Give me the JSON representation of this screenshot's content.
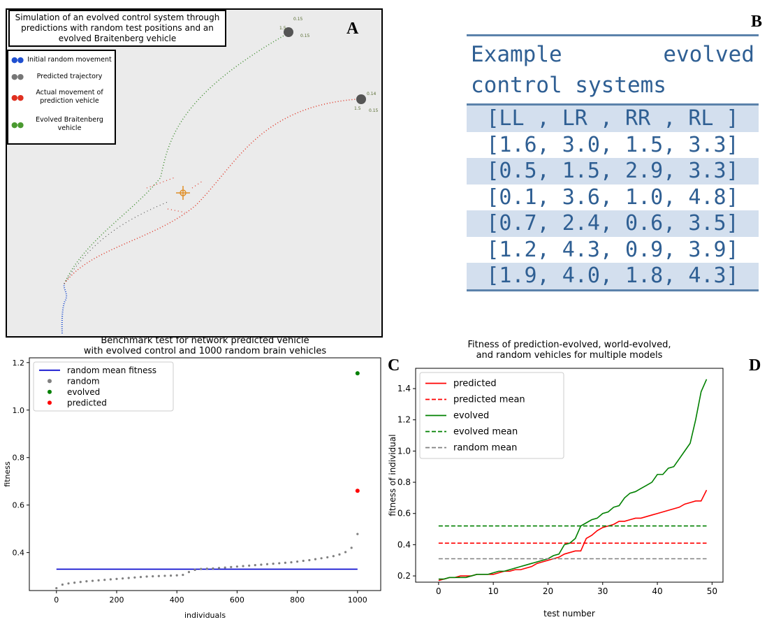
{
  "panel_labels": [
    "A",
    "B",
    "C",
    "D"
  ],
  "simulation": {
    "title": "Simulation of an evolved control system through predictions with random test positions and an evolved Braitenberg vehicle",
    "legend": [
      "Initial random movement",
      "Predicted trajectory",
      "Actual movement of prediction vehicle",
      "Evolved Braitenberg vehicle"
    ],
    "vehicle_labels": [
      [
        "0.15",
        "1.5",
        "0.15"
      ],
      [
        "0.14",
        "1.5",
        "0.15"
      ]
    ]
  },
  "table": {
    "title": "Example evolved control systems",
    "header": "[LL , LR , RR , RL ]",
    "rows": [
      "[1.6, 3.0, 1.5, 3.3]",
      "[0.5, 1.5, 2.9, 3.3]",
      "[0.1, 3.6, 1.0, 4.8]",
      "[0.7, 2.4, 0.6, 3.5]",
      "[1.2, 4.3, 0.9, 3.9]",
      "[1.9, 4.0, 1.8, 4.3]"
    ]
  },
  "chart_data": [
    {
      "type": "scatter",
      "title": [
        "Benchmark test for network predicted vehicle",
        "with evolved control and 1000 random brain vehicles"
      ],
      "xlabel": "individuals",
      "ylabel": "fitness",
      "xlim": [
        -90,
        1077
      ],
      "ylim": [
        0.24,
        1.22
      ],
      "xticks": [
        0,
        200,
        400,
        600,
        800,
        1000
      ],
      "yticks": [
        0.4,
        0.6,
        0.8,
        {
          "value": 1,
          "label": "1.0"
        },
        1.2
      ],
      "legend": "upper left",
      "series": [
        {
          "name": "random mean fitness",
          "color": "#0000cc",
          "mode": "line",
          "x": [
            0,
            1000
          ],
          "values": [
            0.33,
            0.33
          ]
        },
        {
          "name": "random",
          "color": "#808080",
          "mode": "markers",
          "x": [
            0,
            20,
            40,
            60,
            80,
            100,
            120,
            140,
            160,
            180,
            200,
            220,
            240,
            260,
            280,
            300,
            320,
            340,
            360,
            380,
            400,
            420,
            440,
            460,
            480,
            500,
            520,
            540,
            560,
            580,
            600,
            620,
            640,
            660,
            680,
            700,
            720,
            740,
            760,
            780,
            800,
            820,
            840,
            860,
            880,
            900,
            920,
            940,
            960,
            980,
            1000
          ],
          "values": [
            0.25,
            0.265,
            0.27,
            0.273,
            0.276,
            0.279,
            0.281,
            0.283,
            0.285,
            0.287,
            0.289,
            0.291,
            0.293,
            0.295,
            0.297,
            0.299,
            0.3,
            0.301,
            0.302,
            0.303,
            0.304,
            0.306,
            0.318,
            0.327,
            0.331,
            0.332,
            0.333,
            0.335,
            0.337,
            0.339,
            0.341,
            0.343,
            0.345,
            0.347,
            0.349,
            0.351,
            0.353,
            0.355,
            0.357,
            0.359,
            0.362,
            0.365,
            0.368,
            0.372,
            0.376,
            0.38,
            0.385,
            0.392,
            0.402,
            0.42,
            0.478
          ]
        },
        {
          "name": "evolved",
          "color": "#008000",
          "mode": "markers",
          "x": [
            1000
          ],
          "values": [
            1.155
          ]
        },
        {
          "name": "predicted",
          "color": "#ff0000",
          "mode": "markers",
          "x": [
            1000
          ],
          "values": [
            0.66
          ]
        }
      ]
    },
    {
      "type": "line",
      "title": [
        "Fitness of prediction-evolved, world-evolved,",
        "and random vehicles for multiple models"
      ],
      "xlabel": "test number",
      "ylabel": "fitness of individual",
      "xlim": [
        -4.2,
        52
      ],
      "ylim": [
        0.16,
        1.53
      ],
      "xticks": [
        0,
        10,
        20,
        30,
        40,
        50
      ],
      "yticks": [
        0.2,
        0.4,
        0.6,
        0.8,
        {
          "value": 1,
          "label": "1.0"
        },
        1.2,
        1.4
      ],
      "legend": "upper left",
      "series": [
        {
          "name": "predicted",
          "color": "#ff0000",
          "mode": "line",
          "style": "solid",
          "x": [
            0,
            1,
            2,
            3,
            4,
            5,
            6,
            7,
            8,
            9,
            10,
            11,
            12,
            13,
            14,
            15,
            16,
            17,
            18,
            19,
            20,
            21,
            22,
            23,
            24,
            25,
            26,
            27,
            28,
            29,
            30,
            31,
            32,
            33,
            34,
            35,
            36,
            37,
            38,
            39,
            40,
            41,
            42,
            43,
            44,
            45,
            46,
            47,
            48,
            49
          ],
          "values": [
            0.17,
            0.18,
            0.19,
            0.19,
            0.2,
            0.2,
            0.2,
            0.21,
            0.21,
            0.21,
            0.21,
            0.22,
            0.23,
            0.23,
            0.24,
            0.24,
            0.25,
            0.26,
            0.28,
            0.29,
            0.3,
            0.31,
            0.32,
            0.34,
            0.35,
            0.36,
            0.36,
            0.44,
            0.46,
            0.49,
            0.51,
            0.52,
            0.53,
            0.55,
            0.55,
            0.56,
            0.57,
            0.57,
            0.58,
            0.59,
            0.6,
            0.61,
            0.62,
            0.63,
            0.64,
            0.66,
            0.67,
            0.68,
            0.68,
            0.75
          ]
        },
        {
          "name": "predicted mean",
          "color": "#ff0000",
          "mode": "line",
          "style": "dashed",
          "x": [
            0,
            49
          ],
          "values": [
            0.41,
            0.41
          ]
        },
        {
          "name": "evolved",
          "color": "#008000",
          "mode": "line",
          "style": "solid",
          "x": [
            0,
            1,
            2,
            3,
            4,
            5,
            6,
            7,
            8,
            9,
            10,
            11,
            12,
            13,
            14,
            15,
            16,
            17,
            18,
            19,
            20,
            21,
            22,
            23,
            24,
            25,
            26,
            27,
            28,
            29,
            30,
            31,
            32,
            33,
            34,
            35,
            36,
            37,
            38,
            39,
            40,
            41,
            42,
            43,
            44,
            45,
            46,
            47,
            48,
            49
          ],
          "values": [
            0.18,
            0.18,
            0.19,
            0.19,
            0.19,
            0.19,
            0.2,
            0.21,
            0.21,
            0.21,
            0.22,
            0.23,
            0.23,
            0.24,
            0.25,
            0.26,
            0.27,
            0.28,
            0.29,
            0.3,
            0.31,
            0.33,
            0.34,
            0.4,
            0.41,
            0.44,
            0.52,
            0.54,
            0.56,
            0.57,
            0.6,
            0.61,
            0.64,
            0.65,
            0.7,
            0.73,
            0.74,
            0.76,
            0.78,
            0.8,
            0.85,
            0.85,
            0.89,
            0.9,
            0.95,
            1,
            1.05,
            1.2,
            1.38,
            1.46
          ]
        },
        {
          "name": "evolved mean",
          "color": "#008000",
          "mode": "line",
          "style": "dashed",
          "x": [
            0,
            49
          ],
          "values": [
            0.52,
            0.52
          ]
        },
        {
          "name": "random mean",
          "color": "#808080",
          "mode": "line",
          "style": "dashed",
          "x": [
            0,
            49
          ],
          "values": [
            0.31,
            0.31
          ]
        }
      ]
    }
  ]
}
